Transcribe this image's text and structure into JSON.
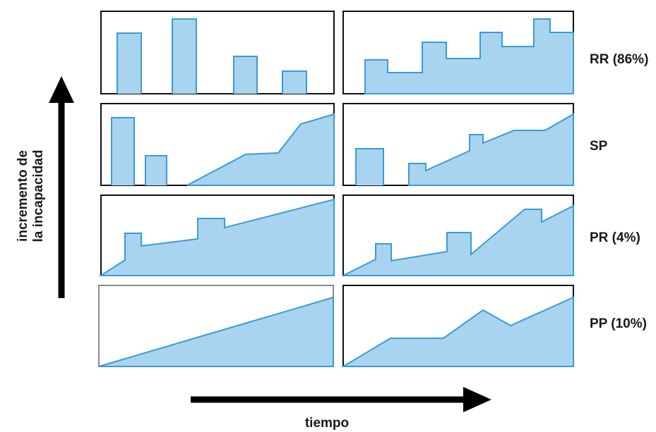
{
  "axes": {
    "x_label": "tiempo",
    "y_label_line1": "incremento de",
    "y_label_line2": "la incapacidad"
  },
  "rows": [
    {
      "id": "rr",
      "label": "RR (86%)"
    },
    {
      "id": "sp",
      "label": "SP"
    },
    {
      "id": "pr",
      "label": "PR (4%)"
    },
    {
      "id": "pp",
      "label": "PP (10%)"
    }
  ],
  "colors": {
    "fill": "#a9d4ef",
    "stroke": "#3a9ad9",
    "frame": "#111111",
    "arrow": "#000000"
  }
}
